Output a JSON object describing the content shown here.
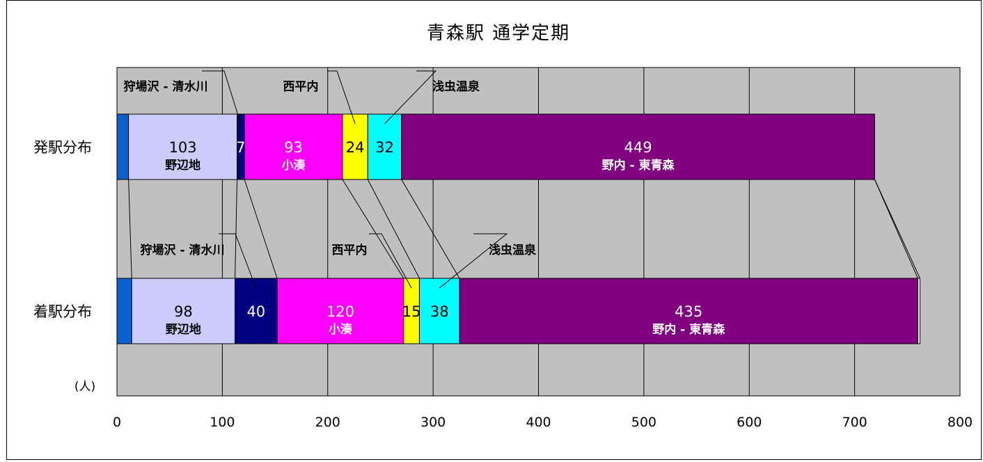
{
  "chart_data": {
    "type": "bar",
    "orientation": "horizontal",
    "stacked": true,
    "title": "青森駅  通学定期",
    "unit_label": "(人)",
    "categories": [
      "発駅分布",
      "着駅分布"
    ],
    "xlim": [
      0,
      800
    ],
    "x_ticks": [
      "0",
      "100",
      "200",
      "300",
      "400",
      "500",
      "600",
      "700",
      "800"
    ],
    "grid": true,
    "plot_background": "#c0c0c0",
    "series": [
      {
        "name": "",
        "color": "#0b60d0",
        "values": [
          11,
          14
        ],
        "show_value": false
      },
      {
        "name": "野辺地",
        "color": "#ccccff",
        "values": [
          103,
          98
        ],
        "label_position": "inside",
        "value_color": "#000000"
      },
      {
        "name": "狩場沢 - 清水川",
        "color": "#000080",
        "values": [
          7,
          40
        ],
        "label_position": "callout",
        "value_color": "#ffffff"
      },
      {
        "name": "小湊",
        "color": "#ff00ff",
        "values": [
          93,
          120
        ],
        "label_position": "inside",
        "value_color": "#ffffff"
      },
      {
        "name": "西平内",
        "color": "#ffff00",
        "values": [
          24,
          15
        ],
        "label_position": "callout",
        "value_color": "#000000"
      },
      {
        "name": "浅虫温泉",
        "color": "#00ffff",
        "values": [
          32,
          38
        ],
        "label_position": "callout",
        "value_color": "#000000"
      },
      {
        "name": "野内 - 東青森",
        "color": "#800080",
        "values": [
          449,
          435
        ],
        "label_position": "inside",
        "value_color": "#ffffff"
      },
      {
        "name": "",
        "color": "#ffffff",
        "values": [
          0,
          2
        ],
        "show_value": false
      }
    ]
  }
}
